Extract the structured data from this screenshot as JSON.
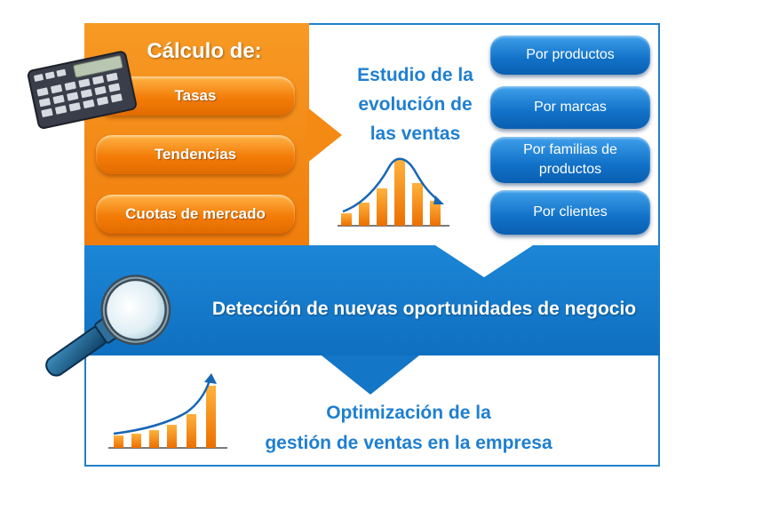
{
  "calculo": {
    "title": "Cálculo de:",
    "items": [
      "Tasas",
      "Tendencias",
      "Cuotas de mercado"
    ]
  },
  "estudio": {
    "line1": "Estudio de la",
    "line2": "evolución de",
    "line3": "las ventas"
  },
  "categorias": {
    "productos": "Por productos",
    "marcas": "Por marcas",
    "familias_line1": "Por familias de",
    "familias_line2": "productos",
    "clientes": "Por clientes"
  },
  "deteccion": "Detección de nuevas oportunidades de negocio",
  "optimizacion": {
    "line1": "Optimización de la",
    "line2": "gestión de ventas en la empresa"
  },
  "colors": {
    "orange": "#f07d0c",
    "blue": "#1171c8",
    "text_blue": "#1f7fd0"
  },
  "icons": [
    "calculator-icon",
    "magnifier-icon",
    "bar-chart-icon",
    "growth-chart-icon"
  ]
}
